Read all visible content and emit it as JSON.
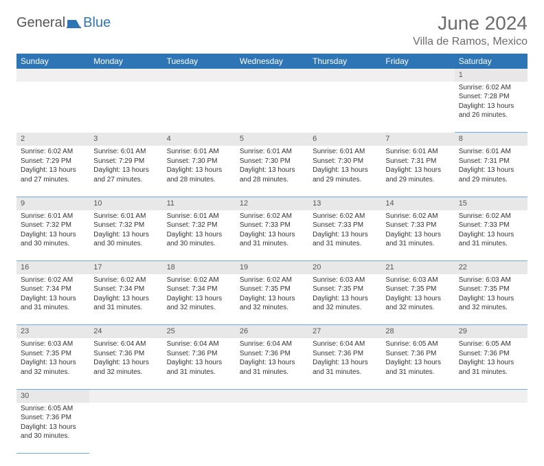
{
  "logo": {
    "part1": "General",
    "part2": "Blue"
  },
  "title": "June 2024",
  "location": "Villa de Ramos, Mexico",
  "colors": {
    "header_bg": "#2e75b6",
    "header_text": "#ffffff",
    "daynum_bg": "#e8e8e8",
    "cell_border": "#6fa8dc",
    "title_color": "#6b6b6b"
  },
  "weekdays": [
    "Sunday",
    "Monday",
    "Tuesday",
    "Wednesday",
    "Thursday",
    "Friday",
    "Saturday"
  ],
  "weeks": [
    [
      null,
      null,
      null,
      null,
      null,
      null,
      {
        "n": "1",
        "sr": "Sunrise: 6:02 AM",
        "ss": "Sunset: 7:28 PM",
        "d1": "Daylight: 13 hours",
        "d2": "and 26 minutes."
      }
    ],
    [
      {
        "n": "2",
        "sr": "Sunrise: 6:02 AM",
        "ss": "Sunset: 7:29 PM",
        "d1": "Daylight: 13 hours",
        "d2": "and 27 minutes."
      },
      {
        "n": "3",
        "sr": "Sunrise: 6:01 AM",
        "ss": "Sunset: 7:29 PM",
        "d1": "Daylight: 13 hours",
        "d2": "and 27 minutes."
      },
      {
        "n": "4",
        "sr": "Sunrise: 6:01 AM",
        "ss": "Sunset: 7:30 PM",
        "d1": "Daylight: 13 hours",
        "d2": "and 28 minutes."
      },
      {
        "n": "5",
        "sr": "Sunrise: 6:01 AM",
        "ss": "Sunset: 7:30 PM",
        "d1": "Daylight: 13 hours",
        "d2": "and 28 minutes."
      },
      {
        "n": "6",
        "sr": "Sunrise: 6:01 AM",
        "ss": "Sunset: 7:30 PM",
        "d1": "Daylight: 13 hours",
        "d2": "and 29 minutes."
      },
      {
        "n": "7",
        "sr": "Sunrise: 6:01 AM",
        "ss": "Sunset: 7:31 PM",
        "d1": "Daylight: 13 hours",
        "d2": "and 29 minutes."
      },
      {
        "n": "8",
        "sr": "Sunrise: 6:01 AM",
        "ss": "Sunset: 7:31 PM",
        "d1": "Daylight: 13 hours",
        "d2": "and 29 minutes."
      }
    ],
    [
      {
        "n": "9",
        "sr": "Sunrise: 6:01 AM",
        "ss": "Sunset: 7:32 PM",
        "d1": "Daylight: 13 hours",
        "d2": "and 30 minutes."
      },
      {
        "n": "10",
        "sr": "Sunrise: 6:01 AM",
        "ss": "Sunset: 7:32 PM",
        "d1": "Daylight: 13 hours",
        "d2": "and 30 minutes."
      },
      {
        "n": "11",
        "sr": "Sunrise: 6:01 AM",
        "ss": "Sunset: 7:32 PM",
        "d1": "Daylight: 13 hours",
        "d2": "and 30 minutes."
      },
      {
        "n": "12",
        "sr": "Sunrise: 6:02 AM",
        "ss": "Sunset: 7:33 PM",
        "d1": "Daylight: 13 hours",
        "d2": "and 31 minutes."
      },
      {
        "n": "13",
        "sr": "Sunrise: 6:02 AM",
        "ss": "Sunset: 7:33 PM",
        "d1": "Daylight: 13 hours",
        "d2": "and 31 minutes."
      },
      {
        "n": "14",
        "sr": "Sunrise: 6:02 AM",
        "ss": "Sunset: 7:33 PM",
        "d1": "Daylight: 13 hours",
        "d2": "and 31 minutes."
      },
      {
        "n": "15",
        "sr": "Sunrise: 6:02 AM",
        "ss": "Sunset: 7:33 PM",
        "d1": "Daylight: 13 hours",
        "d2": "and 31 minutes."
      }
    ],
    [
      {
        "n": "16",
        "sr": "Sunrise: 6:02 AM",
        "ss": "Sunset: 7:34 PM",
        "d1": "Daylight: 13 hours",
        "d2": "and 31 minutes."
      },
      {
        "n": "17",
        "sr": "Sunrise: 6:02 AM",
        "ss": "Sunset: 7:34 PM",
        "d1": "Daylight: 13 hours",
        "d2": "and 31 minutes."
      },
      {
        "n": "18",
        "sr": "Sunrise: 6:02 AM",
        "ss": "Sunset: 7:34 PM",
        "d1": "Daylight: 13 hours",
        "d2": "and 32 minutes."
      },
      {
        "n": "19",
        "sr": "Sunrise: 6:02 AM",
        "ss": "Sunset: 7:35 PM",
        "d1": "Daylight: 13 hours",
        "d2": "and 32 minutes."
      },
      {
        "n": "20",
        "sr": "Sunrise: 6:03 AM",
        "ss": "Sunset: 7:35 PM",
        "d1": "Daylight: 13 hours",
        "d2": "and 32 minutes."
      },
      {
        "n": "21",
        "sr": "Sunrise: 6:03 AM",
        "ss": "Sunset: 7:35 PM",
        "d1": "Daylight: 13 hours",
        "d2": "and 32 minutes."
      },
      {
        "n": "22",
        "sr": "Sunrise: 6:03 AM",
        "ss": "Sunset: 7:35 PM",
        "d1": "Daylight: 13 hours",
        "d2": "and 32 minutes."
      }
    ],
    [
      {
        "n": "23",
        "sr": "Sunrise: 6:03 AM",
        "ss": "Sunset: 7:35 PM",
        "d1": "Daylight: 13 hours",
        "d2": "and 32 minutes."
      },
      {
        "n": "24",
        "sr": "Sunrise: 6:04 AM",
        "ss": "Sunset: 7:36 PM",
        "d1": "Daylight: 13 hours",
        "d2": "and 32 minutes."
      },
      {
        "n": "25",
        "sr": "Sunrise: 6:04 AM",
        "ss": "Sunset: 7:36 PM",
        "d1": "Daylight: 13 hours",
        "d2": "and 31 minutes."
      },
      {
        "n": "26",
        "sr": "Sunrise: 6:04 AM",
        "ss": "Sunset: 7:36 PM",
        "d1": "Daylight: 13 hours",
        "d2": "and 31 minutes."
      },
      {
        "n": "27",
        "sr": "Sunrise: 6:04 AM",
        "ss": "Sunset: 7:36 PM",
        "d1": "Daylight: 13 hours",
        "d2": "and 31 minutes."
      },
      {
        "n": "28",
        "sr": "Sunrise: 6:05 AM",
        "ss": "Sunset: 7:36 PM",
        "d1": "Daylight: 13 hours",
        "d2": "and 31 minutes."
      },
      {
        "n": "29",
        "sr": "Sunrise: 6:05 AM",
        "ss": "Sunset: 7:36 PM",
        "d1": "Daylight: 13 hours",
        "d2": "and 31 minutes."
      }
    ],
    [
      {
        "n": "30",
        "sr": "Sunrise: 6:05 AM",
        "ss": "Sunset: 7:36 PM",
        "d1": "Daylight: 13 hours",
        "d2": "and 30 minutes."
      },
      null,
      null,
      null,
      null,
      null,
      null
    ]
  ]
}
